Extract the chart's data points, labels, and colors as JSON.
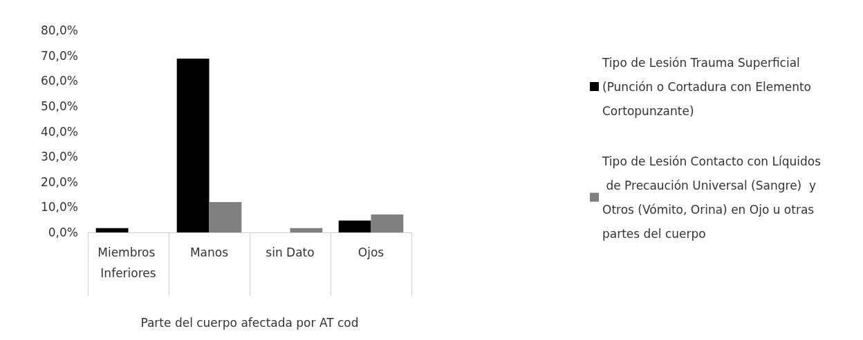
{
  "chart_data": {
    "type": "bar",
    "xlabel": "Parte del cuerpo afectada por AT cod",
    "categories": [
      "Miembros Inferiores",
      "Manos",
      "sin Dato",
      "Ojos"
    ],
    "series": [
      {
        "name": "Tipo de Lesión Trauma Superficial (Punción o Cortadura con Elemento Cortopunzante)",
        "color": "#000000",
        "values": [
          1.7,
          68.8,
          null,
          4.7
        ]
      },
      {
        "name": "Tipo de Lesión Contacto con Líquidos de Precaución Universal (Sangre)  y Otros (Vómito, Orina) en Ojo u otras partes del cuerpo",
        "color": "#808080",
        "values": [
          null,
          12.0,
          1.7,
          7.1
        ]
      }
    ],
    "ylim": [
      0,
      80
    ],
    "yticks": [
      {
        "value": 0,
        "label": "0,0%"
      },
      {
        "value": 10,
        "label": "10,0%"
      },
      {
        "value": 20,
        "label": "20,0%"
      },
      {
        "value": 30,
        "label": "30,0%"
      },
      {
        "value": 40,
        "label": "40,0%"
      },
      {
        "value": 50,
        "label": "50,0%"
      },
      {
        "value": 60,
        "label": "60,0%"
      },
      {
        "value": 70,
        "label": "70,0%"
      },
      {
        "value": 80,
        "label": "80,0%"
      }
    ],
    "grid": false,
    "legend": "right"
  }
}
